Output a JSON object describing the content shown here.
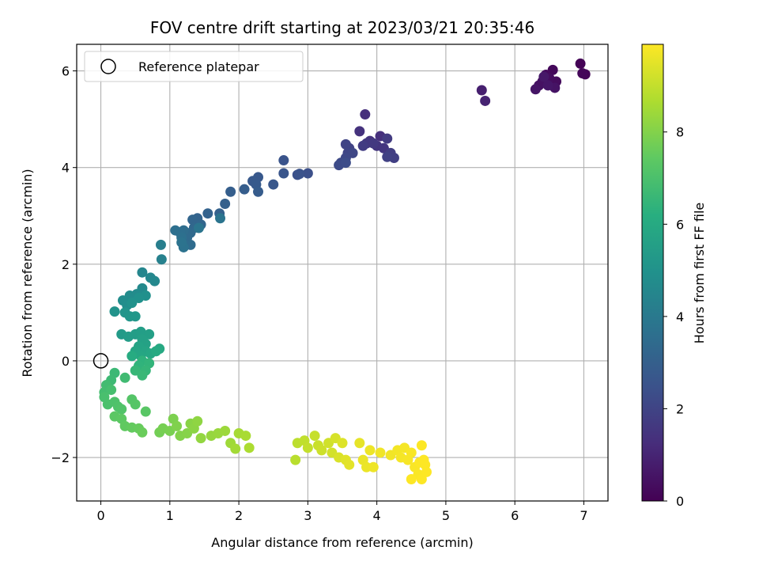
{
  "chart_data": {
    "type": "scatter",
    "title": "FOV centre drift starting at 2023/03/21 20:35:46",
    "xlabel": "Angular distance from reference (arcmin)",
    "ylabel": "Rotation from reference (arcmin)",
    "xlim": [
      -0.35,
      7.35
    ],
    "ylim": [
      -2.9,
      6.55
    ],
    "xticks": [
      0,
      1,
      2,
      3,
      4,
      5,
      6,
      7
    ],
    "yticks": [
      -2,
      0,
      2,
      4,
      6
    ],
    "xtick_labels": [
      "0",
      "1",
      "2",
      "3",
      "4",
      "5",
      "6",
      "7"
    ],
    "ytick_labels": [
      "−2",
      "0",
      "2",
      "4",
      "6"
    ],
    "grid": true,
    "legend": {
      "placement": "top-left",
      "entries": [
        "Reference platepar"
      ]
    },
    "reference_point": {
      "x": 0,
      "y": 0
    },
    "colorbar": {
      "label": "Hours from first FF file",
      "colormap": "viridis",
      "range": [
        0,
        9.9
      ],
      "ticks": [
        0,
        2,
        4,
        6,
        8
      ],
      "tick_labels": [
        "0",
        "2",
        "4",
        "6",
        "8"
      ]
    },
    "points": [
      [
        6.95,
        6.15,
        0.05
      ],
      [
        7.02,
        5.93,
        0.1
      ],
      [
        6.98,
        5.95,
        0.15
      ],
      [
        6.55,
        6.02,
        0.2
      ],
      [
        6.45,
        5.92,
        0.25
      ],
      [
        6.6,
        5.78,
        0.3
      ],
      [
        6.5,
        5.85,
        0.35
      ],
      [
        6.4,
        5.78,
        0.4
      ],
      [
        6.35,
        5.7,
        0.45
      ],
      [
        6.58,
        5.65,
        0.5
      ],
      [
        6.3,
        5.62,
        0.55
      ],
      [
        6.48,
        5.7,
        0.6
      ],
      [
        6.42,
        5.88,
        0.65
      ],
      [
        5.52,
        5.6,
        0.85
      ],
      [
        5.57,
        5.38,
        0.95
      ],
      [
        3.83,
        5.1,
        1.3
      ],
      [
        4.05,
        4.65,
        1.35
      ],
      [
        3.75,
        4.75,
        1.4
      ],
      [
        3.9,
        4.55,
        1.45
      ],
      [
        4.0,
        4.45,
        1.5
      ],
      [
        4.1,
        4.4,
        1.55
      ],
      [
        3.85,
        4.5,
        1.6
      ],
      [
        3.95,
        4.5,
        1.65
      ],
      [
        4.15,
        4.6,
        1.7
      ],
      [
        3.8,
        4.45,
        1.75
      ],
      [
        4.2,
        4.3,
        1.8
      ],
      [
        4.25,
        4.2,
        1.85
      ],
      [
        4.15,
        4.22,
        1.9
      ],
      [
        3.6,
        4.4,
        1.95
      ],
      [
        3.55,
        4.48,
        2.0
      ],
      [
        3.58,
        4.3,
        2.05
      ],
      [
        3.65,
        4.3,
        2.1
      ],
      [
        3.55,
        4.2,
        2.15
      ],
      [
        3.48,
        4.1,
        2.2
      ],
      [
        3.45,
        4.05,
        2.25
      ],
      [
        3.55,
        4.1,
        2.3
      ],
      [
        3.0,
        3.88,
        2.4
      ],
      [
        2.85,
        3.85,
        2.45
      ],
      [
        2.88,
        3.87,
        2.5
      ],
      [
        2.65,
        4.15,
        2.55
      ],
      [
        2.65,
        3.88,
        2.6
      ],
      [
        2.5,
        3.65,
        2.65
      ],
      [
        2.28,
        3.8,
        2.7
      ],
      [
        2.2,
        3.72,
        2.75
      ],
      [
        2.25,
        3.65,
        2.8
      ],
      [
        2.28,
        3.5,
        2.85
      ],
      [
        2.08,
        3.55,
        2.9
      ],
      [
        1.88,
        3.5,
        2.95
      ],
      [
        1.8,
        3.25,
        3.0
      ],
      [
        1.72,
        3.05,
        3.05
      ],
      [
        1.55,
        3.05,
        3.1
      ],
      [
        1.4,
        2.95,
        3.15
      ],
      [
        1.33,
        2.92,
        3.2
      ],
      [
        1.45,
        2.82,
        3.25
      ],
      [
        1.35,
        2.75,
        3.3
      ],
      [
        1.3,
        2.65,
        3.35
      ],
      [
        1.25,
        2.55,
        3.4
      ],
      [
        1.3,
        2.4,
        3.45
      ],
      [
        1.2,
        2.7,
        3.5
      ],
      [
        1.15,
        2.65,
        3.55
      ],
      [
        1.08,
        2.7,
        3.6
      ],
      [
        1.17,
        2.55,
        3.65
      ],
      [
        1.2,
        2.35,
        3.7
      ],
      [
        1.17,
        2.45,
        3.75
      ],
      [
        1.73,
        2.95,
        3.8
      ],
      [
        1.42,
        2.75,
        3.85
      ],
      [
        0.87,
        2.4,
        4.2
      ],
      [
        0.88,
        2.1,
        4.3
      ],
      [
        0.6,
        1.83,
        4.5
      ],
      [
        0.72,
        1.72,
        4.55
      ],
      [
        0.78,
        1.65,
        4.6
      ],
      [
        0.6,
        1.5,
        4.65
      ],
      [
        0.52,
        1.38,
        4.7
      ],
      [
        0.42,
        1.35,
        4.75
      ],
      [
        0.32,
        1.25,
        4.8
      ],
      [
        0.38,
        1.15,
        4.85
      ],
      [
        0.65,
        1.35,
        4.9
      ],
      [
        0.55,
        1.3,
        4.95
      ],
      [
        0.45,
        1.2,
        5.0
      ],
      [
        0.2,
        1.02,
        5.05
      ],
      [
        0.35,
        1.0,
        5.1
      ],
      [
        0.42,
        0.92,
        5.15
      ],
      [
        0.5,
        0.92,
        5.2
      ],
      [
        0.3,
        0.55,
        5.35
      ],
      [
        0.4,
        0.5,
        5.4
      ],
      [
        0.5,
        0.55,
        5.45
      ],
      [
        0.58,
        0.6,
        5.5
      ],
      [
        0.7,
        0.55,
        5.55
      ],
      [
        0.6,
        0.45,
        5.6
      ],
      [
        0.65,
        0.35,
        5.65
      ],
      [
        0.55,
        0.3,
        5.7
      ],
      [
        0.65,
        0.2,
        5.75
      ],
      [
        0.5,
        0.2,
        5.8
      ],
      [
        0.58,
        0.1,
        5.85
      ],
      [
        0.72,
        0.15,
        5.9
      ],
      [
        0.85,
        0.25,
        5.95
      ],
      [
        0.8,
        0.2,
        6.0
      ],
      [
        0.45,
        0.1,
        6.05
      ],
      [
        0.6,
        0.0,
        6.35
      ],
      [
        0.55,
        -0.1,
        6.4
      ],
      [
        0.7,
        -0.05,
        6.45
      ],
      [
        0.65,
        -0.2,
        6.5
      ],
      [
        0.5,
        -0.2,
        6.55
      ],
      [
        0.6,
        -0.3,
        6.6
      ],
      [
        0.2,
        -0.25,
        6.65
      ],
      [
        0.15,
        -0.4,
        6.7
      ],
      [
        0.35,
        -0.35,
        6.75
      ],
      [
        0.08,
        -0.5,
        6.8
      ],
      [
        0.05,
        -0.65,
        6.85
      ],
      [
        0.15,
        -0.6,
        6.9
      ],
      [
        0.05,
        -0.75,
        6.95
      ],
      [
        0.1,
        -0.9,
        7.0
      ],
      [
        0.2,
        -0.85,
        7.05
      ],
      [
        0.25,
        -0.95,
        7.1
      ],
      [
        0.3,
        -1.0,
        7.15
      ],
      [
        0.45,
        -0.8,
        7.2
      ],
      [
        0.5,
        -0.9,
        7.25
      ],
      [
        0.65,
        -1.05,
        7.3
      ],
      [
        0.2,
        -1.15,
        7.35
      ],
      [
        0.3,
        -1.2,
        7.4
      ],
      [
        0.35,
        -1.35,
        7.45
      ],
      [
        0.45,
        -1.38,
        7.5
      ],
      [
        0.55,
        -1.4,
        7.55
      ],
      [
        0.6,
        -1.48,
        7.6
      ],
      [
        0.85,
        -1.48,
        7.75
      ],
      [
        0.9,
        -1.4,
        7.8
      ],
      [
        1.0,
        -1.45,
        7.85
      ],
      [
        1.05,
        -1.2,
        7.9
      ],
      [
        1.1,
        -1.35,
        7.95
      ],
      [
        1.15,
        -1.55,
        8.0
      ],
      [
        1.25,
        -1.5,
        8.05
      ],
      [
        1.3,
        -1.3,
        8.1
      ],
      [
        1.35,
        -1.4,
        8.15
      ],
      [
        1.4,
        -1.25,
        8.2
      ],
      [
        1.45,
        -1.6,
        8.25
      ],
      [
        1.6,
        -1.55,
        8.3
      ],
      [
        1.7,
        -1.5,
        8.35
      ],
      [
        1.8,
        -1.45,
        8.4
      ],
      [
        1.88,
        -1.7,
        8.45
      ],
      [
        1.95,
        -1.82,
        8.5
      ],
      [
        2.0,
        -1.5,
        8.55
      ],
      [
        2.1,
        -1.55,
        8.6
      ],
      [
        2.15,
        -1.8,
        8.65
      ],
      [
        2.82,
        -2.05,
        8.85
      ],
      [
        2.85,
        -1.7,
        8.9
      ],
      [
        2.95,
        -1.65,
        8.95
      ],
      [
        3.0,
        -1.8,
        9.0
      ],
      [
        3.1,
        -1.55,
        9.05
      ],
      [
        3.15,
        -1.75,
        9.1
      ],
      [
        3.2,
        -1.85,
        9.15
      ],
      [
        3.3,
        -1.7,
        9.2
      ],
      [
        3.35,
        -1.9,
        9.25
      ],
      [
        3.4,
        -1.6,
        9.3
      ],
      [
        3.45,
        -2.0,
        9.35
      ],
      [
        3.5,
        -1.7,
        9.4
      ],
      [
        3.55,
        -2.05,
        9.45
      ],
      [
        3.6,
        -2.15,
        9.5
      ],
      [
        3.75,
        -1.7,
        9.55
      ],
      [
        3.8,
        -2.05,
        9.6
      ],
      [
        3.85,
        -2.2,
        9.62
      ],
      [
        3.9,
        -1.85,
        9.65
      ],
      [
        3.95,
        -2.2,
        9.67
      ],
      [
        4.05,
        -1.9,
        9.7
      ],
      [
        4.2,
        -1.95,
        9.72
      ],
      [
        4.3,
        -1.85,
        9.75
      ],
      [
        4.35,
        -2.0,
        9.77
      ],
      [
        4.4,
        -1.8,
        9.78
      ],
      [
        4.45,
        -2.05,
        9.8
      ],
      [
        4.5,
        -1.9,
        9.82
      ],
      [
        4.55,
        -2.2,
        9.84
      ],
      [
        4.6,
        -2.35,
        9.86
      ],
      [
        4.62,
        -2.1,
        9.88
      ],
      [
        4.65,
        -1.75,
        9.89
      ],
      [
        4.68,
        -2.05,
        9.9
      ],
      [
        4.7,
        -2.15,
        9.9
      ],
      [
        4.5,
        -2.45,
        9.9
      ],
      [
        4.65,
        -2.45,
        9.9
      ],
      [
        4.72,
        -2.3,
        9.9
      ]
    ]
  }
}
